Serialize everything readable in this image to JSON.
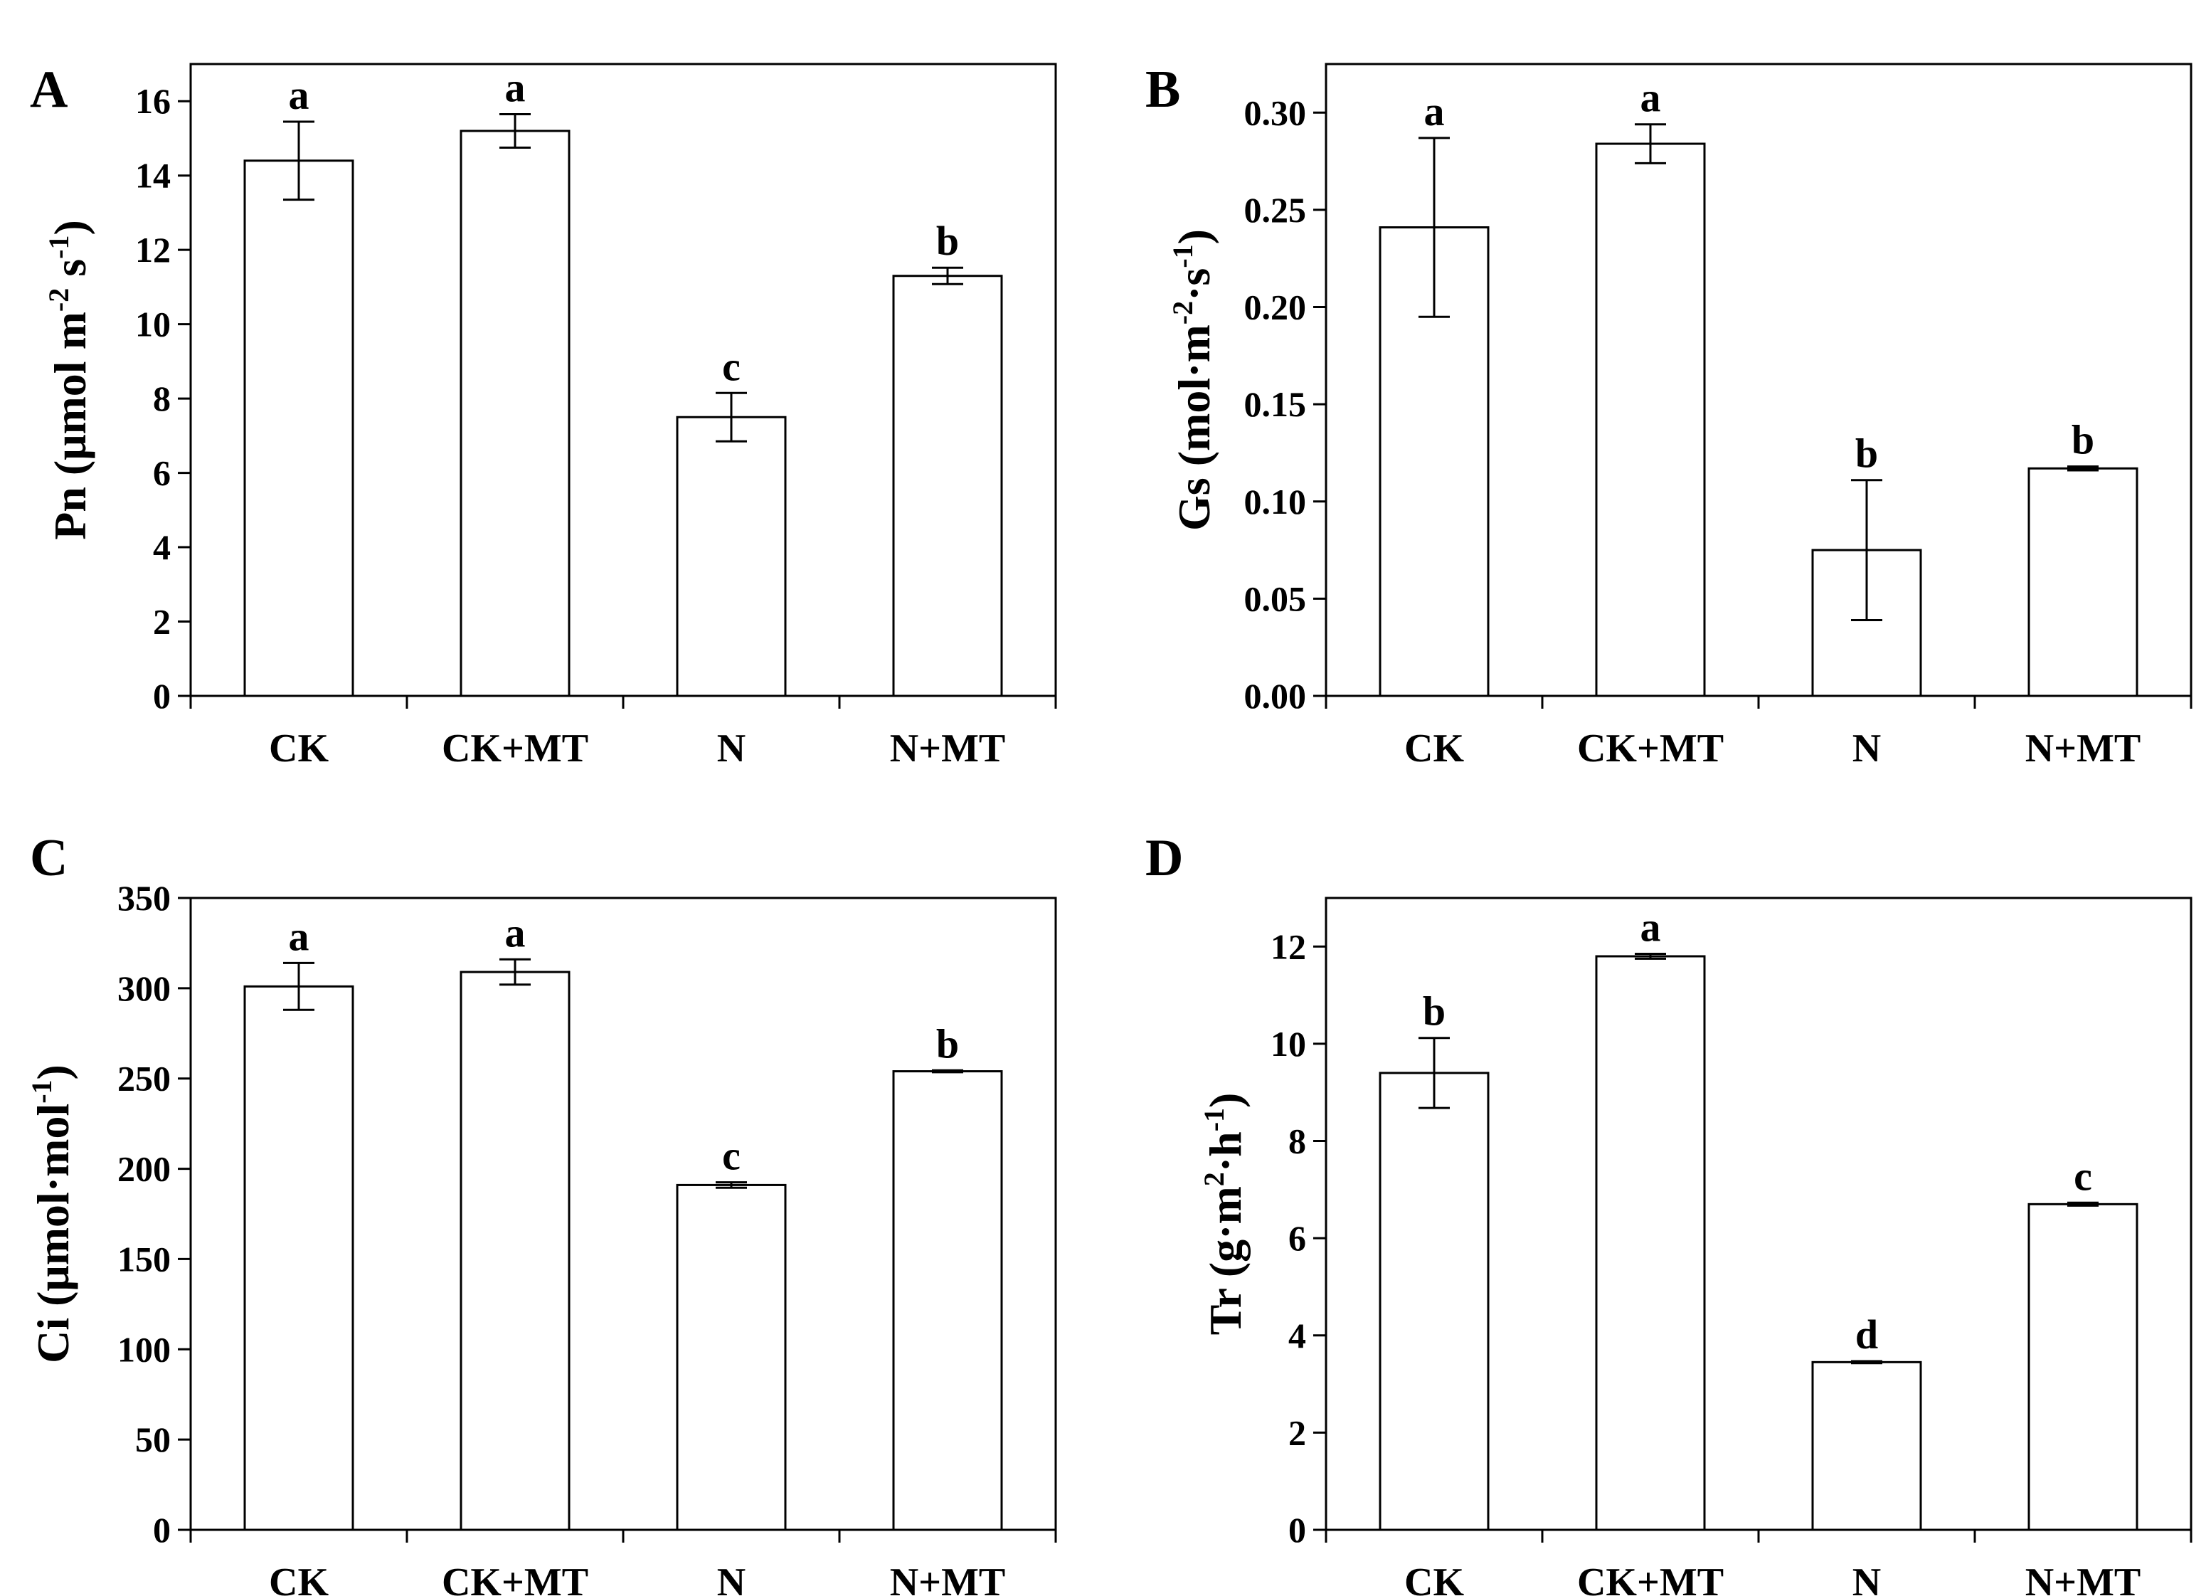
{
  "chart_data": [
    {
      "panel": "A",
      "type": "bar",
      "categories": [
        "CK",
        "CK+MT",
        "N",
        "N+MT"
      ],
      "values": [
        14.4,
        15.2,
        7.5,
        11.3
      ],
      "errors": [
        1.05,
        0.45,
        0.65,
        0.22
      ],
      "letters": [
        "a",
        "a",
        "c",
        "b"
      ],
      "ylim": [
        0,
        17
      ],
      "yticks": [
        0,
        2,
        4,
        6,
        8,
        10,
        12,
        14,
        16
      ],
      "ytick_labels": [
        "0",
        "2",
        "4",
        "6",
        "8",
        "10",
        "12",
        "14",
        "16"
      ],
      "ylabel": [
        {
          "text": "Pn  (μmol m",
          "sup": false
        },
        {
          "text": "-2",
          "sup": true
        },
        {
          "text": " s",
          "sup": false
        },
        {
          "text": "-1",
          "sup": true
        },
        {
          "text": ")",
          "sup": false
        }
      ],
      "xlabel": ""
    },
    {
      "panel": "B",
      "type": "bar",
      "categories": [
        "CK",
        "CK+MT",
        "N",
        "N+MT"
      ],
      "values": [
        0.241,
        0.284,
        0.075,
        0.117
      ],
      "errors": [
        0.046,
        0.01,
        0.036,
        0.001
      ],
      "letters": [
        "a",
        "a",
        "b",
        "b"
      ],
      "ylim": [
        0,
        0.325
      ],
      "yticks": [
        0,
        0.05,
        0.1,
        0.15,
        0.2,
        0.25,
        0.3
      ],
      "ytick_labels": [
        "0.00",
        "0.05",
        "0.10",
        "0.15",
        "0.20",
        "0.25",
        "0.30"
      ],
      "ylabel": [
        {
          "text": "Gs  (mol·m",
          "sup": false
        },
        {
          "text": "-2",
          "sup": true
        },
        {
          "text": "·s",
          "sup": false
        },
        {
          "text": "-1",
          "sup": true
        },
        {
          "text": ")",
          "sup": false
        }
      ],
      "xlabel": ""
    },
    {
      "panel": "C",
      "type": "bar",
      "categories": [
        "CK",
        "CK+MT",
        "N",
        "N+MT"
      ],
      "values": [
        301,
        309,
        191,
        254
      ],
      "errors": [
        13,
        7,
        1.5,
        0.5
      ],
      "letters": [
        "a",
        "a",
        "c",
        "b"
      ],
      "ylim": [
        0,
        350
      ],
      "yticks": [
        0,
        50,
        100,
        150,
        200,
        250,
        300,
        350
      ],
      "ytick_labels": [
        "0",
        "50",
        "100",
        "150",
        "200",
        "250",
        "300",
        "350"
      ],
      "ylabel": [
        {
          "text": "Ci (μmol·mol",
          "sup": false
        },
        {
          "text": "-1",
          "sup": true
        },
        {
          "text": ")",
          "sup": false
        }
      ],
      "xlabel": ""
    },
    {
      "panel": "D",
      "type": "bar",
      "categories": [
        "CK",
        "CK+MT",
        "N",
        "N+MT"
      ],
      "values": [
        9.4,
        11.8,
        3.45,
        6.7
      ],
      "errors": [
        0.72,
        0.05,
        0.02,
        0.03
      ],
      "letters": [
        "b",
        "a",
        "d",
        "c"
      ],
      "ylim": [
        0,
        13
      ],
      "yticks": [
        0,
        2,
        4,
        6,
        8,
        10,
        12
      ],
      "ytick_labels": [
        "0",
        "2",
        "4",
        "6",
        "8",
        "10",
        "12"
      ],
      "ylabel": [
        {
          "text": "Tr (g·m",
          "sup": false
        },
        {
          "text": "2",
          "sup": true
        },
        {
          "text": "·h",
          "sup": false
        },
        {
          "text": "-1",
          "sup": true
        },
        {
          "text": ")",
          "sup": false
        }
      ],
      "xlabel": ""
    }
  ],
  "colors": {
    "bar_fill": "#ffffff",
    "bar_stroke": "#000000",
    "axis": "#000000",
    "background": "#ffffff"
  }
}
